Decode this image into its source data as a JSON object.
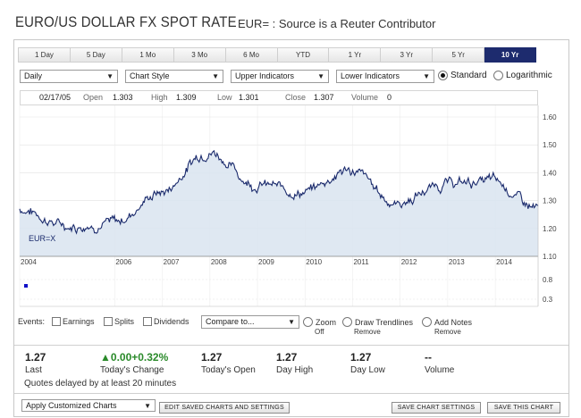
{
  "header": {
    "title": "EURO/US DOLLAR FX SPOT RATE",
    "subtitle": "EUR= : Source is a Reuter Contributor"
  },
  "tabs": [
    {
      "label": "1 Day",
      "active": false
    },
    {
      "label": "5 Day",
      "active": false
    },
    {
      "label": "1 Mo",
      "active": false
    },
    {
      "label": "3 Mo",
      "active": false
    },
    {
      "label": "6 Mo",
      "active": false
    },
    {
      "label": "YTD",
      "active": false
    },
    {
      "label": "1 Yr",
      "active": false
    },
    {
      "label": "3 Yr",
      "active": false
    },
    {
      "label": "5 Yr",
      "active": false
    },
    {
      "label": "10 Yr",
      "active": true
    }
  ],
  "controls": {
    "frequency": "Daily",
    "chart_style": "Chart Style",
    "upper_indicators": "Upper Indicators",
    "lower_indicators": "Lower Indicators",
    "scale_standard": "Standard",
    "scale_log": "Logarithmic",
    "selected_scale": "standard"
  },
  "quote_bar": {
    "date": "02/17/05",
    "open_label": "Open",
    "open": "1.303",
    "high_label": "High",
    "high": "1.309",
    "low_label": "Low",
    "low": "1.301",
    "close_label": "Close",
    "close": "1.307",
    "volume_label": "Volume",
    "volume": "0"
  },
  "chart_data": {
    "type": "area",
    "x": [
      "2004",
      "2005",
      "2006",
      "2007",
      "2008",
      "2009",
      "2010",
      "2011",
      "2012",
      "2013",
      "2014",
      "2015"
    ],
    "series": [
      {
        "name": "EUR=X",
        "values": [
          1.27,
          1.21,
          1.22,
          1.33,
          1.48,
          1.36,
          1.33,
          1.41,
          1.29,
          1.36,
          1.37,
          1.27
        ]
      }
    ],
    "xticks": [
      "2004",
      "2006",
      "2007",
      "2008",
      "2009",
      "2010",
      "2011",
      "2012",
      "2013",
      "2014"
    ],
    "yticks": [
      "1.60",
      "1.50",
      "1.40",
      "1.30",
      "1.20",
      "1.10"
    ],
    "ylim": [
      1.1,
      1.6
    ],
    "lower_panel_yticks": [
      "0.8",
      "0.3"
    ],
    "line_color": "#1a2a6c",
    "fill_color": "#d9e4f0",
    "grid": true
  },
  "events": {
    "label": "Events:",
    "earnings": "Earnings",
    "splits": "Splits",
    "dividends": "Dividends",
    "compare": "Compare to...",
    "zoom": "Zoom",
    "zoom_sub": "Off",
    "trendlines": "Draw Trendlines",
    "trendlines_sub": "Remove",
    "notes": "Add Notes",
    "notes_sub": "Remove"
  },
  "stats": [
    {
      "value": "1.27",
      "label": "Last"
    },
    {
      "value": "0.00+0.32%",
      "label": "Today's Change"
    },
    {
      "value": "1.27",
      "label": "Today's Open"
    },
    {
      "value": "1.27",
      "label": "Day High"
    },
    {
      "value": "1.27",
      "label": "Day Low"
    },
    {
      "value": "--",
      "label": "Volume"
    }
  ],
  "delay_note": "Quotes delayed by at least 20 minutes",
  "bottom": {
    "apply_select": "Apply Customized Charts",
    "edit_button": "EDIT SAVED CHARTS AND SETTINGS",
    "save_settings": "SAVE CHART SETTINGS",
    "save_chart": "SAVE THIS CHART"
  }
}
